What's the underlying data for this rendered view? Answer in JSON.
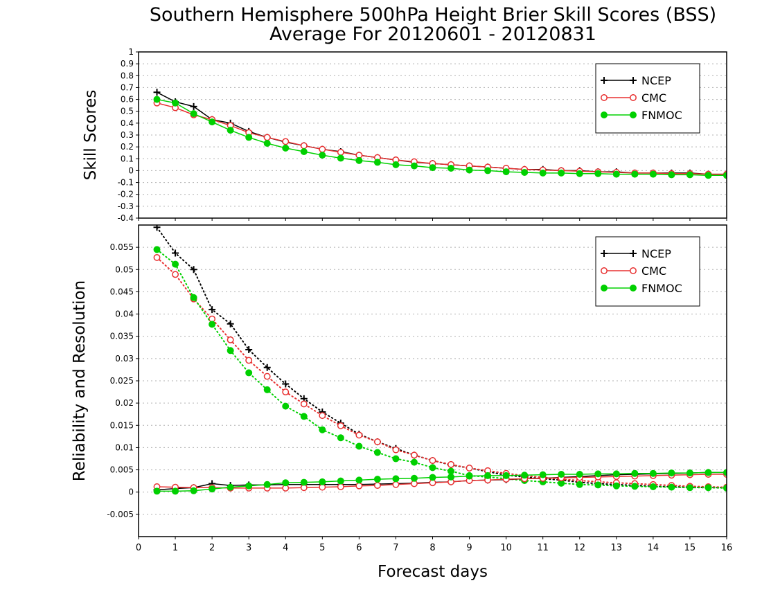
{
  "title_line1": "Southern Hemisphere 500hPa Height Brier Skill Scores (BSS)",
  "title_line2": "Average For 20120601 - 20120831",
  "colors": {
    "NCEP": "#000000",
    "CMC": "#e83030",
    "FNMOC": "#00d000",
    "grid": "#b0b0b0"
  },
  "chart_data": [
    {
      "type": "line",
      "panel": "top",
      "ylabel": "Skill Scores",
      "ylim": [
        -0.4,
        1
      ],
      "yticks": [
        "1",
        "0.9",
        "0.8",
        "0.7",
        "0.6",
        "0.5",
        "0.4",
        "0.3",
        "0.2",
        "0.1",
        "0",
        "-0.1",
        "-0.2",
        "-0.3",
        "-0.4"
      ],
      "xlim": [
        0,
        16
      ],
      "grid": true,
      "legend_position": "top-right",
      "x": [
        0.5,
        1,
        1.5,
        2,
        2.5,
        3,
        3.5,
        4,
        4.5,
        5,
        5.5,
        6,
        6.5,
        7,
        7.5,
        8,
        8.5,
        9,
        9.5,
        10,
        10.5,
        11,
        11.5,
        12,
        12.5,
        13,
        13.5,
        14,
        14.5,
        15,
        15.5,
        16
      ],
      "series": [
        {
          "name": "NCEP",
          "marker": "plus",
          "line": "solid",
          "values": [
            0.66,
            0.58,
            0.54,
            0.43,
            0.4,
            0.33,
            0.28,
            0.24,
            0.21,
            0.18,
            0.16,
            0.13,
            0.11,
            0.09,
            0.07,
            0.06,
            0.05,
            0.04,
            0.03,
            0.02,
            0.01,
            0.01,
            0.0,
            0.0,
            -0.01,
            -0.01,
            -0.02,
            -0.02,
            -0.02,
            -0.02,
            -0.03,
            -0.03
          ]
        },
        {
          "name": "CMC",
          "marker": "open-circle",
          "line": "solid",
          "values": [
            0.57,
            0.53,
            0.47,
            0.43,
            0.38,
            0.32,
            0.28,
            0.245,
            0.21,
            0.18,
            0.155,
            0.13,
            0.11,
            0.09,
            0.075,
            0.06,
            0.05,
            0.04,
            0.03,
            0.02,
            0.01,
            0.005,
            0.0,
            -0.005,
            -0.01,
            -0.015,
            -0.02,
            -0.02,
            -0.025,
            -0.025,
            -0.03,
            -0.03
          ]
        },
        {
          "name": "FNMOC",
          "marker": "filled-circle",
          "line": "solid",
          "values": [
            0.6,
            0.57,
            0.48,
            0.41,
            0.34,
            0.28,
            0.23,
            0.19,
            0.16,
            0.13,
            0.105,
            0.085,
            0.07,
            0.05,
            0.04,
            0.025,
            0.02,
            0.005,
            0.0,
            -0.01,
            -0.015,
            -0.02,
            -0.02,
            -0.025,
            -0.025,
            -0.03,
            -0.03,
            -0.03,
            -0.035,
            -0.035,
            -0.04,
            -0.04
          ]
        }
      ]
    },
    {
      "type": "line",
      "panel": "bottom",
      "ylabel": "Reliability and Resolution",
      "xlabel": "Forecast days",
      "ylim": [
        -0.01,
        0.06
      ],
      "yticks": [
        "0.055",
        "0.05",
        "0.045",
        "0.04",
        "0.035",
        "0.03",
        "0.025",
        "0.02",
        "0.015",
        "0.01",
        "0.005",
        "0",
        "-0.005"
      ],
      "xlim": [
        0,
        16
      ],
      "xticks": [
        "0",
        "1",
        "2",
        "3",
        "4",
        "5",
        "6",
        "7",
        "8",
        "9",
        "10",
        "11",
        "12",
        "13",
        "14",
        "15",
        "16"
      ],
      "grid": true,
      "legend_position": "top-right",
      "x": [
        0.5,
        1,
        1.5,
        2,
        2.5,
        3,
        3.5,
        4,
        4.5,
        5,
        5.5,
        6,
        6.5,
        7,
        7.5,
        8,
        8.5,
        9,
        9.5,
        10,
        10.5,
        11,
        11.5,
        12,
        12.5,
        13,
        13.5,
        14,
        14.5,
        15,
        15.5,
        16
      ],
      "series": [
        {
          "name": "NCEP",
          "component": "resolution",
          "marker": "plus",
          "line": "dotted",
          "values": [
            0.0595,
            0.0537,
            0.05,
            0.041,
            0.0378,
            0.032,
            0.028,
            0.0243,
            0.021,
            0.018,
            0.0155,
            0.013,
            0.0113,
            0.0098,
            0.0083,
            0.0071,
            0.0061,
            0.0054,
            0.0046,
            0.0038,
            0.0034,
            0.003,
            0.0027,
            0.0022,
            0.0019,
            0.0017,
            0.0015,
            0.0013,
            0.0012,
            0.0011,
            0.001,
            0.001
          ]
        },
        {
          "name": "CMC",
          "component": "resolution",
          "marker": "open-circle",
          "line": "dotted",
          "values": [
            0.0527,
            0.0489,
            0.0434,
            0.0389,
            0.0342,
            0.0296,
            0.026,
            0.0225,
            0.0198,
            0.0172,
            0.0149,
            0.0128,
            0.0113,
            0.0095,
            0.0083,
            0.0071,
            0.0062,
            0.0054,
            0.0048,
            0.0042,
            0.0037,
            0.0033,
            0.0029,
            0.0026,
            0.0023,
            0.0021,
            0.0019,
            0.0017,
            0.0015,
            0.0013,
            0.0012,
            0.0011
          ]
        },
        {
          "name": "FNMOC",
          "component": "resolution",
          "marker": "filled-circle",
          "line": "dotted",
          "values": [
            0.0545,
            0.0512,
            0.0437,
            0.0377,
            0.0318,
            0.0268,
            0.023,
            0.0193,
            0.017,
            0.014,
            0.0122,
            0.0103,
            0.0089,
            0.0075,
            0.0067,
            0.0055,
            0.0047,
            0.0037,
            0.0034,
            0.003,
            0.0026,
            0.0023,
            0.002,
            0.0017,
            0.0016,
            0.0014,
            0.0013,
            0.0012,
            0.0011,
            0.001,
            0.001,
            0.0009
          ]
        },
        {
          "name": "NCEP",
          "component": "reliability",
          "marker": "plus",
          "line": "solid",
          "values": [
            0.0005,
            0.0008,
            0.001,
            0.0019,
            0.0015,
            0.0016,
            0.0016,
            0.0017,
            0.0017,
            0.0017,
            0.0017,
            0.0017,
            0.0018,
            0.0019,
            0.002,
            0.0022,
            0.0023,
            0.0026,
            0.0027,
            0.0028,
            0.003,
            0.0031,
            0.0033,
            0.0035,
            0.0037,
            0.0039,
            0.004,
            0.0041,
            0.0042,
            0.0043,
            0.0044,
            0.0044
          ]
        },
        {
          "name": "CMC",
          "component": "reliability",
          "marker": "open-circle",
          "line": "solid",
          "values": [
            0.0012,
            0.0011,
            0.001,
            0.001,
            0.0009,
            0.0009,
            0.0009,
            0.0009,
            0.001,
            0.0011,
            0.0012,
            0.0014,
            0.0015,
            0.0017,
            0.0019,
            0.0021,
            0.0023,
            0.0026,
            0.0027,
            0.0029,
            0.003,
            0.0031,
            0.0032,
            0.0033,
            0.0034,
            0.0035,
            0.0036,
            0.0037,
            0.0038,
            0.0039,
            0.004,
            0.004
          ]
        },
        {
          "name": "FNMOC",
          "component": "reliability",
          "marker": "filled-circle",
          "line": "solid",
          "values": [
            0.0002,
            0.0002,
            0.0003,
            0.0007,
            0.0011,
            0.0014,
            0.0017,
            0.0021,
            0.0022,
            0.0023,
            0.0025,
            0.0027,
            0.0029,
            0.003,
            0.0031,
            0.0033,
            0.0034,
            0.0036,
            0.0037,
            0.0037,
            0.0038,
            0.0039,
            0.004,
            0.004,
            0.0041,
            0.0041,
            0.0042,
            0.0042,
            0.0043,
            0.0043,
            0.0044,
            0.0044
          ]
        }
      ]
    }
  ]
}
